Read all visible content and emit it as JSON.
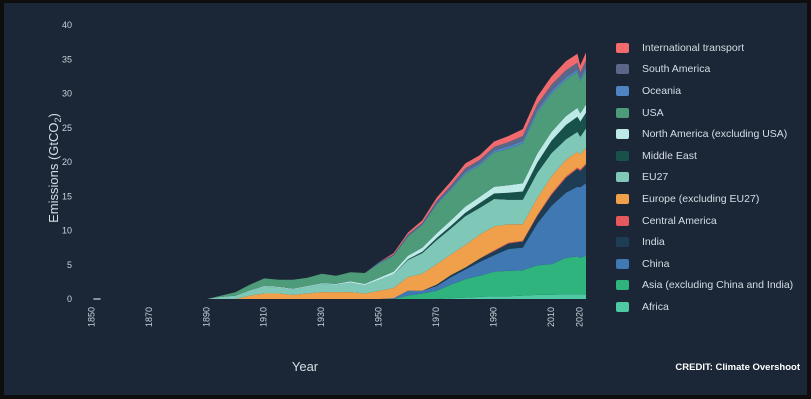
{
  "credit": "CREDIT: Climate Overshoot",
  "chart_data": {
    "type": "area",
    "stacked": true,
    "xlabel": "Year",
    "ylabel": "Emissions (GtCO₂)",
    "xlim": [
      1850,
      2022
    ],
    "ylim": [
      0,
      40
    ],
    "yticks": [
      0,
      5,
      10,
      15,
      20,
      25,
      30,
      35,
      40
    ],
    "xticks": [
      1850,
      1870,
      1890,
      1910,
      1930,
      1950,
      1970,
      1990,
      2010,
      2020
    ],
    "grid": false,
    "legend_position": "right",
    "x": [
      1850,
      1852,
      1886,
      1890,
      1895,
      1900,
      1905,
      1910,
      1915,
      1920,
      1925,
      1930,
      1935,
      1940,
      1945,
      1950,
      1955,
      1960,
      1965,
      1970,
      1975,
      1980,
      1985,
      1990,
      1995,
      2000,
      2005,
      2010,
      2015,
      2019,
      2020,
      2022
    ],
    "series": [
      {
        "name": "Africa",
        "color": "#4ec9a4",
        "values": [
          0,
          0,
          0,
          0,
          0,
          0,
          0,
          0,
          0,
          0,
          0,
          0,
          0,
          0,
          0,
          0,
          0,
          0,
          0,
          0,
          0.1,
          0.2,
          0.3,
          0.4,
          0.4,
          0.5,
          0.6,
          0.6,
          0.7,
          0.7,
          0.7,
          0.7
        ]
      },
      {
        "name": "Asia (excluding China and India)",
        "color": "#2fb47e",
        "values": [
          0,
          0,
          0,
          0,
          0,
          0,
          0,
          0,
          0,
          0,
          0,
          0,
          0,
          0,
          0,
          0,
          0,
          0.5,
          0.8,
          1.2,
          2.0,
          2.7,
          3.1,
          3.6,
          3.7,
          3.7,
          4.3,
          4.5,
          5.3,
          5.5,
          5.3,
          5.6
        ]
      },
      {
        "name": "China",
        "color": "#3f78b3",
        "values": [
          0,
          0,
          0,
          0,
          0,
          0,
          0,
          0,
          0,
          0,
          0,
          0,
          0,
          0,
          0,
          0,
          0.1,
          0.7,
          0.4,
          0.7,
          1.1,
          1.4,
          2.0,
          2.4,
          3.2,
          3.3,
          6.1,
          8.5,
          9.5,
          10.2,
          10.3,
          10.6
        ]
      },
      {
        "name": "India",
        "color": "#1e3d54",
        "values": [
          0,
          0,
          0,
          0,
          0,
          0,
          0,
          0,
          0,
          0,
          0,
          0,
          0,
          0,
          0,
          0,
          0,
          0,
          0,
          0.2,
          0.3,
          0.3,
          0.5,
          0.6,
          0.8,
          0.9,
          1.1,
          1.6,
          2.2,
          2.6,
          2.4,
          2.7
        ]
      },
      {
        "name": "Central America",
        "color": "#e6585c",
        "values": [
          0,
          0,
          0,
          0,
          0,
          0,
          0,
          0,
          0,
          0,
          0,
          0,
          0,
          0,
          0,
          0,
          0,
          0,
          0,
          0,
          0,
          0,
          0,
          0.1,
          0.1,
          0.1,
          0.1,
          0.2,
          0.2,
          0.2,
          0.2,
          0.2
        ]
      },
      {
        "name": "Europe (excluding EU27)",
        "color": "#f0a04a",
        "values": [
          0,
          0,
          0,
          0,
          0,
          0,
          0.5,
          0.8,
          0.8,
          0.6,
          0.8,
          1,
          1,
          1,
          0.8,
          1.2,
          1.5,
          2,
          2.5,
          3.0,
          3.0,
          3.3,
          3.5,
          3.5,
          2.7,
          2.4,
          2.5,
          2.5,
          2.4,
          2.3,
          2.2,
          2.3
        ]
      },
      {
        "name": "EU27",
        "color": "#7fc8b8",
        "values": [
          0,
          0,
          0,
          0,
          0.3,
          0.5,
          0.8,
          1,
          0.9,
          0.8,
          1,
          1.2,
          1.1,
          1.4,
          1.2,
          1.6,
          2.0,
          2.5,
          3.0,
          3.5,
          3.8,
          4.2,
          3.9,
          4.0,
          3.6,
          3.6,
          3.7,
          3.4,
          3.0,
          2.9,
          2.6,
          2.8
        ]
      },
      {
        "name": "Middle East",
        "color": "#18514a",
        "values": [
          0,
          0,
          0,
          0,
          0,
          0,
          0,
          0,
          0,
          0,
          0,
          0,
          0,
          0,
          0,
          0,
          0,
          0.1,
          0.2,
          0.3,
          0.4,
          0.5,
          0.7,
          0.8,
          1.0,
          1.2,
          1.5,
          1.8,
          2.1,
          2.2,
          2.2,
          2.3
        ]
      },
      {
        "name": "North America (excluding USA)",
        "color": "#bde9e6",
        "values": [
          0,
          0,
          0,
          0,
          0,
          0,
          0,
          0.1,
          0.1,
          0.1,
          0.1,
          0.1,
          0.1,
          0.2,
          0.2,
          0.3,
          0.4,
          0.5,
          0.6,
          0.7,
          0.8,
          0.9,
          0.9,
          1.0,
          1.1,
          1.2,
          1.3,
          1.3,
          1.3,
          1.3,
          1.2,
          1.2
        ]
      },
      {
        "name": "USA",
        "color": "#4d9b78",
        "values": [
          0,
          0,
          0,
          0,
          0.2,
          0.5,
          0.8,
          1.1,
          1.0,
          1.3,
          1.2,
          1.4,
          1.2,
          1.3,
          1.6,
          2.1,
          2.3,
          2.8,
          3.3,
          4.2,
          4.5,
          4.8,
          4.6,
          5.0,
          5.3,
          5.8,
          6.0,
          5.6,
          5.3,
          5.2,
          4.7,
          5.0
        ]
      },
      {
        "name": "Oceania",
        "color": "#4f84c2",
        "values": [
          0,
          0,
          0,
          0,
          0,
          0,
          0,
          0,
          0,
          0,
          0,
          0,
          0,
          0,
          0,
          0.1,
          0.1,
          0.1,
          0.1,
          0.2,
          0.2,
          0.3,
          0.3,
          0.3,
          0.4,
          0.4,
          0.4,
          0.4,
          0.4,
          0.4,
          0.4,
          0.4
        ]
      },
      {
        "name": "South America",
        "color": "#5b6689",
        "values": [
          0,
          0,
          0,
          0,
          0,
          0,
          0,
          0,
          0,
          0,
          0,
          0,
          0,
          0,
          0,
          0.1,
          0.1,
          0.2,
          0.2,
          0.3,
          0.4,
          0.5,
          0.5,
          0.5,
          0.6,
          0.7,
          0.8,
          0.9,
          1.0,
          1.0,
          0.9,
          1.0
        ]
      },
      {
        "name": "International transport",
        "color": "#f06a6e",
        "values": [
          0,
          0,
          0,
          0,
          0,
          0,
          0,
          0,
          0,
          0,
          0,
          0,
          0,
          0,
          0,
          0,
          0.2,
          0.3,
          0.4,
          0.5,
          0.6,
          0.7,
          0.7,
          0.8,
          0.9,
          1.0,
          1.1,
          1.2,
          1.3,
          1.3,
          1.0,
          1.2
        ]
      }
    ]
  }
}
